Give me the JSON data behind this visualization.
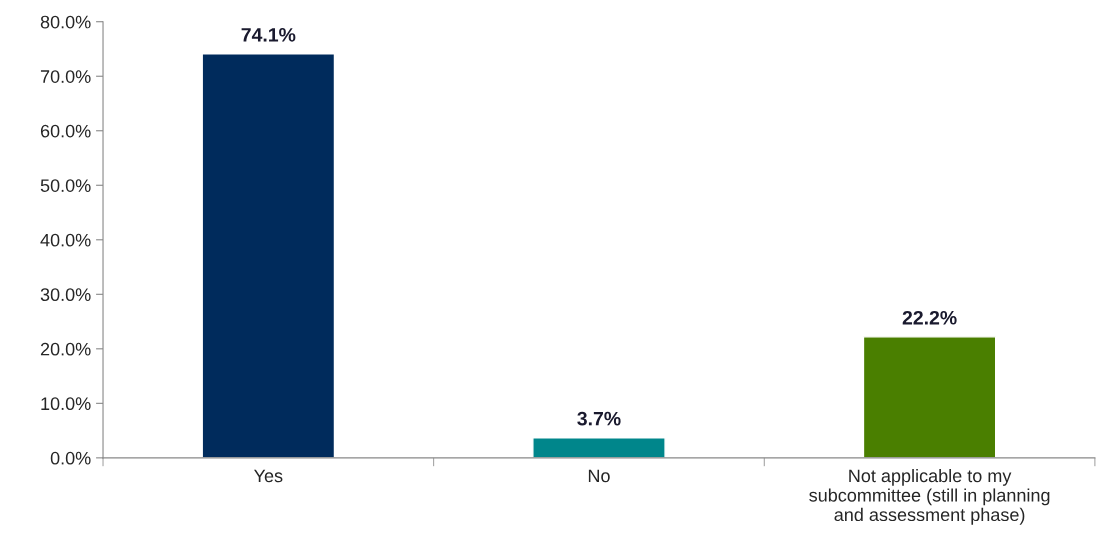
{
  "chart_data": {
    "type": "bar",
    "categories": [
      "Yes",
      "No",
      "Not applicable to my\nsubcommittee (still in planning\nand assessment phase)"
    ],
    "values": [
      74.1,
      3.7,
      22.2
    ],
    "colors": [
      "#002b5c",
      "#00868b",
      "#4a7f00"
    ],
    "value_labels": [
      "74.1%",
      "3.7%",
      "22.2%"
    ],
    "ylim": [
      0,
      80
    ],
    "yticks": [
      {
        "value": 0,
        "label": "0.0%"
      },
      {
        "value": 10,
        "label": "10.0%"
      },
      {
        "value": 20,
        "label": "20.0%"
      },
      {
        "value": 30,
        "label": "30.0%"
      },
      {
        "value": 40,
        "label": "40.0%"
      },
      {
        "value": 50,
        "label": "50.0%"
      },
      {
        "value": 60,
        "label": "60.0%"
      },
      {
        "value": 70,
        "label": "70.0%"
      },
      {
        "value": 80,
        "label": "80.0%"
      }
    ],
    "grid": false,
    "legend": false
  }
}
